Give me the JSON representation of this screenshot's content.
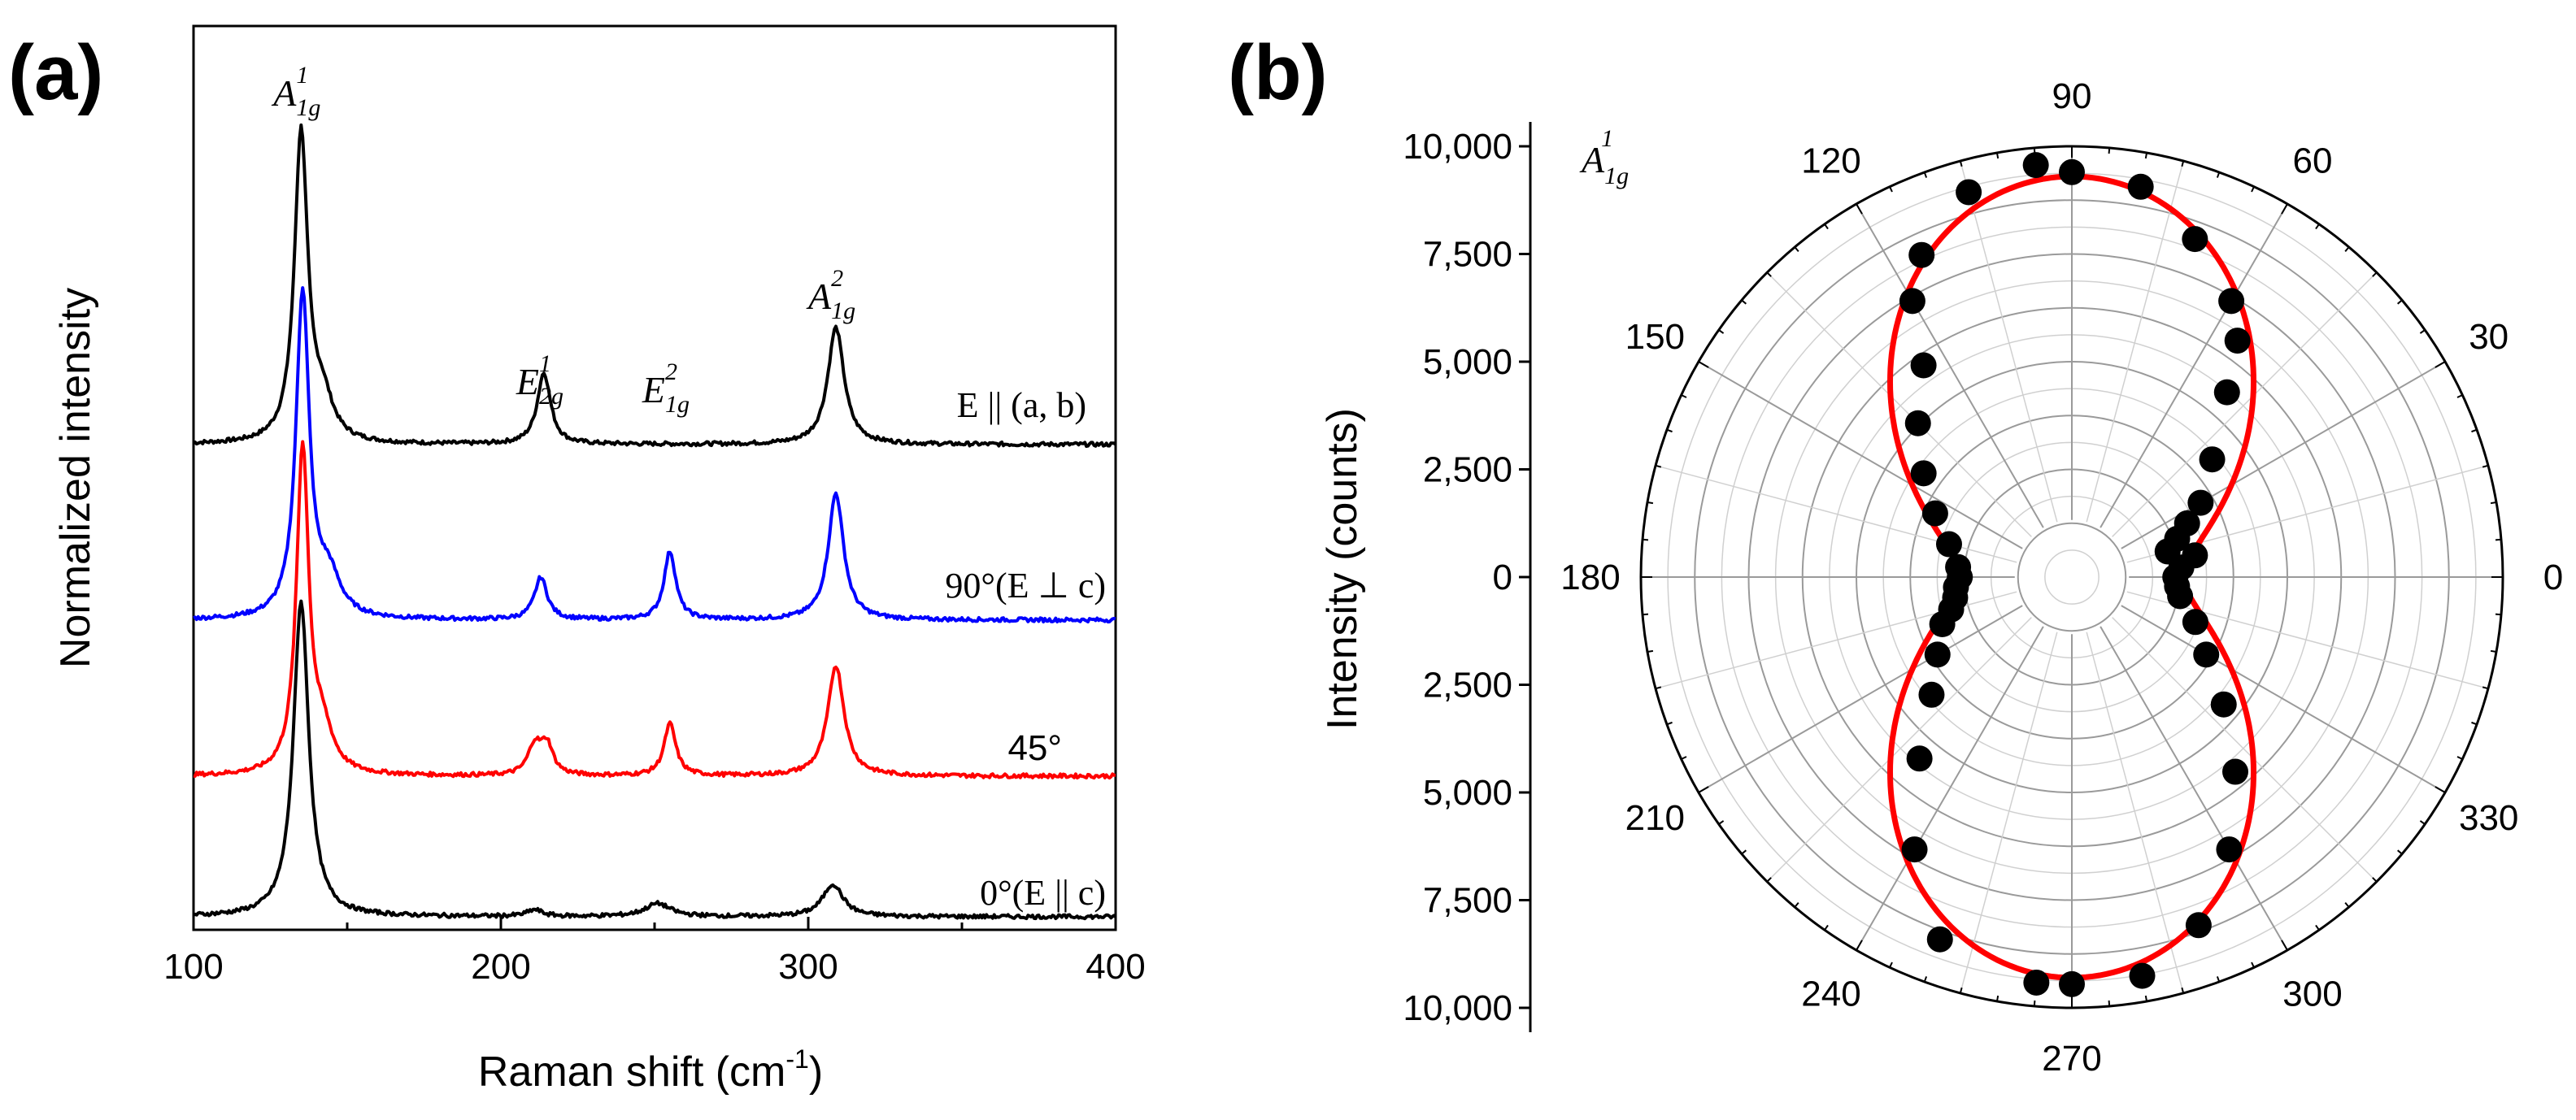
{
  "chart_data": [
    {
      "panel": "(a)",
      "type": "line",
      "xlabel": "Raman shift (cm",
      "xlabel_sup": "-1",
      "xlabel_close": ")",
      "ylabel": "Normalized intensity",
      "xlim": [
        100,
        400
      ],
      "xticks": [
        "100",
        "200",
        "300",
        "400"
      ],
      "series": [
        {
          "name": "E || (a,b)",
          "label_text": "E || (a, b)",
          "color": "#000000",
          "offset": 3,
          "peaks": [
            {
              "center": 135,
              "height": 0.95,
              "width": 2.6
            },
            {
              "center": 142,
              "height": 0.12,
              "width": 4.0
            },
            {
              "center": 214,
              "height": 0.22,
              "width": 2.6
            },
            {
              "center": 309,
              "height": 0.36,
              "width": 3.2
            }
          ]
        },
        {
          "name": "90° (E ⊥ c)",
          "label_text": "90°(E ⊥ c)",
          "color": "#0000ff",
          "offset": 2,
          "peaks": [
            {
              "center": 135.5,
              "height": 1.0,
              "width": 2.6
            },
            {
              "center": 144,
              "height": 0.12,
              "width": 4.5
            },
            {
              "center": 213,
              "height": 0.13,
              "width": 2.5
            },
            {
              "center": 255,
              "height": 0.21,
              "width": 2.3
            },
            {
              "center": 309,
              "height": 0.39,
              "width": 3.0
            }
          ]
        },
        {
          "name": "45°",
          "label_text": "45°",
          "color": "#ff0000",
          "offset": 1,
          "peaks": [
            {
              "center": 135.5,
              "height": 1.0,
              "width": 2.4
            },
            {
              "center": 142,
              "height": 0.12,
              "width": 4.0
            },
            {
              "center": 211,
              "height": 0.09,
              "width": 2.6
            },
            {
              "center": 215,
              "height": 0.09,
              "width": 2.4
            },
            {
              "center": 255,
              "height": 0.16,
              "width": 2.3
            },
            {
              "center": 309,
              "height": 0.34,
              "width": 3.2
            }
          ]
        },
        {
          "name": "0° (E || c)",
          "label_text": "0°(E || c)",
          "color": "#000000",
          "offset": 0,
          "peaks": [
            {
              "center": 135,
              "height": 0.97,
              "width": 3.0
            },
            {
              "center": 211,
              "height": 0.02,
              "width": 3.0
            },
            {
              "center": 251,
              "height": 0.04,
              "width": 5.0
            },
            {
              "center": 308,
              "height": 0.1,
              "width": 4.0
            }
          ]
        }
      ],
      "peak_labels": [
        {
          "base": "A",
          "sub": "1g",
          "sup": "1",
          "x": 135
        },
        {
          "base": "E",
          "sub": "2g",
          "sup": "1",
          "x": 214
        },
        {
          "base": "E",
          "sub": "1g",
          "sup": "2",
          "x": 255
        },
        {
          "base": "A",
          "sub": "1g",
          "sup": "2",
          "x": 309
        }
      ]
    },
    {
      "panel": "(b)",
      "type": "scatter",
      "projection": "polar",
      "ylabel": "Intensity (counts)",
      "rlim": [
        0,
        10000
      ],
      "rticks": [
        "10,000",
        "7,500",
        "5,000",
        "2,500",
        "0",
        "2,500",
        "5,000",
        "7,500",
        "10,000"
      ],
      "angle_ticks": [
        "0",
        "30",
        "60",
        "90",
        "120",
        "150",
        "180",
        "210",
        "240",
        "270",
        "300",
        "330"
      ],
      "label": {
        "base": "A",
        "sub": "1g",
        "sup": "1"
      },
      "fit_color": "#ff0000",
      "point_color": "#000000",
      "fit_model": "r = 9300 sin^2(theta) + 2600 cos^2(theta)",
      "points": [
        {
          "theta": 0,
          "r": 2400
        },
        {
          "theta": 5,
          "r": 2550
        },
        {
          "theta": 10,
          "r": 2900
        },
        {
          "theta": 15,
          "r": 2300
        },
        {
          "theta": 20,
          "r": 2600
        },
        {
          "theta": 25,
          "r": 2950
        },
        {
          "theta": 30,
          "r": 3450
        },
        {
          "theta": 40,
          "r": 4250
        },
        {
          "theta": 50,
          "r": 5600
        },
        {
          "theta": 55,
          "r": 6700
        },
        {
          "theta": 60,
          "r": 7400
        },
        {
          "theta": 70,
          "r": 8350
        },
        {
          "theta": 80,
          "r": 9200
        },
        {
          "theta": 90,
          "r": 9400
        },
        {
          "theta": 95,
          "r": 9600
        },
        {
          "theta": 105,
          "r": 9250
        },
        {
          "theta": 115,
          "r": 8250
        },
        {
          "theta": 120,
          "r": 7400
        },
        {
          "theta": 125,
          "r": 6000
        },
        {
          "theta": 135,
          "r": 5050
        },
        {
          "theta": 145,
          "r": 4200
        },
        {
          "theta": 155,
          "r": 3500
        },
        {
          "theta": 165,
          "r": 2950
        },
        {
          "theta": 175,
          "r": 2650
        },
        {
          "theta": 180,
          "r": 2600
        },
        {
          "theta": 185,
          "r": 2700
        },
        {
          "theta": 190,
          "r": 2750
        },
        {
          "theta": 195,
          "r": 2900
        },
        {
          "theta": 200,
          "r": 3200
        },
        {
          "theta": 210,
          "r": 3600
        },
        {
          "theta": 220,
          "r": 4250
        },
        {
          "theta": 230,
          "r": 5500
        },
        {
          "theta": 240,
          "r": 7300
        },
        {
          "theta": 250,
          "r": 8950
        },
        {
          "theta": 265,
          "r": 9450
        },
        {
          "theta": 270,
          "r": 9450
        },
        {
          "theta": 280,
          "r": 9400
        },
        {
          "theta": 290,
          "r": 8600
        },
        {
          "theta": 300,
          "r": 7300
        },
        {
          "theta": 310,
          "r": 5900
        },
        {
          "theta": 320,
          "r": 4600
        },
        {
          "theta": 330,
          "r": 3600
        },
        {
          "theta": 340,
          "r": 3050
        },
        {
          "theta": 350,
          "r": 2550
        },
        {
          "theta": 355,
          "r": 2450
        }
      ]
    }
  ]
}
